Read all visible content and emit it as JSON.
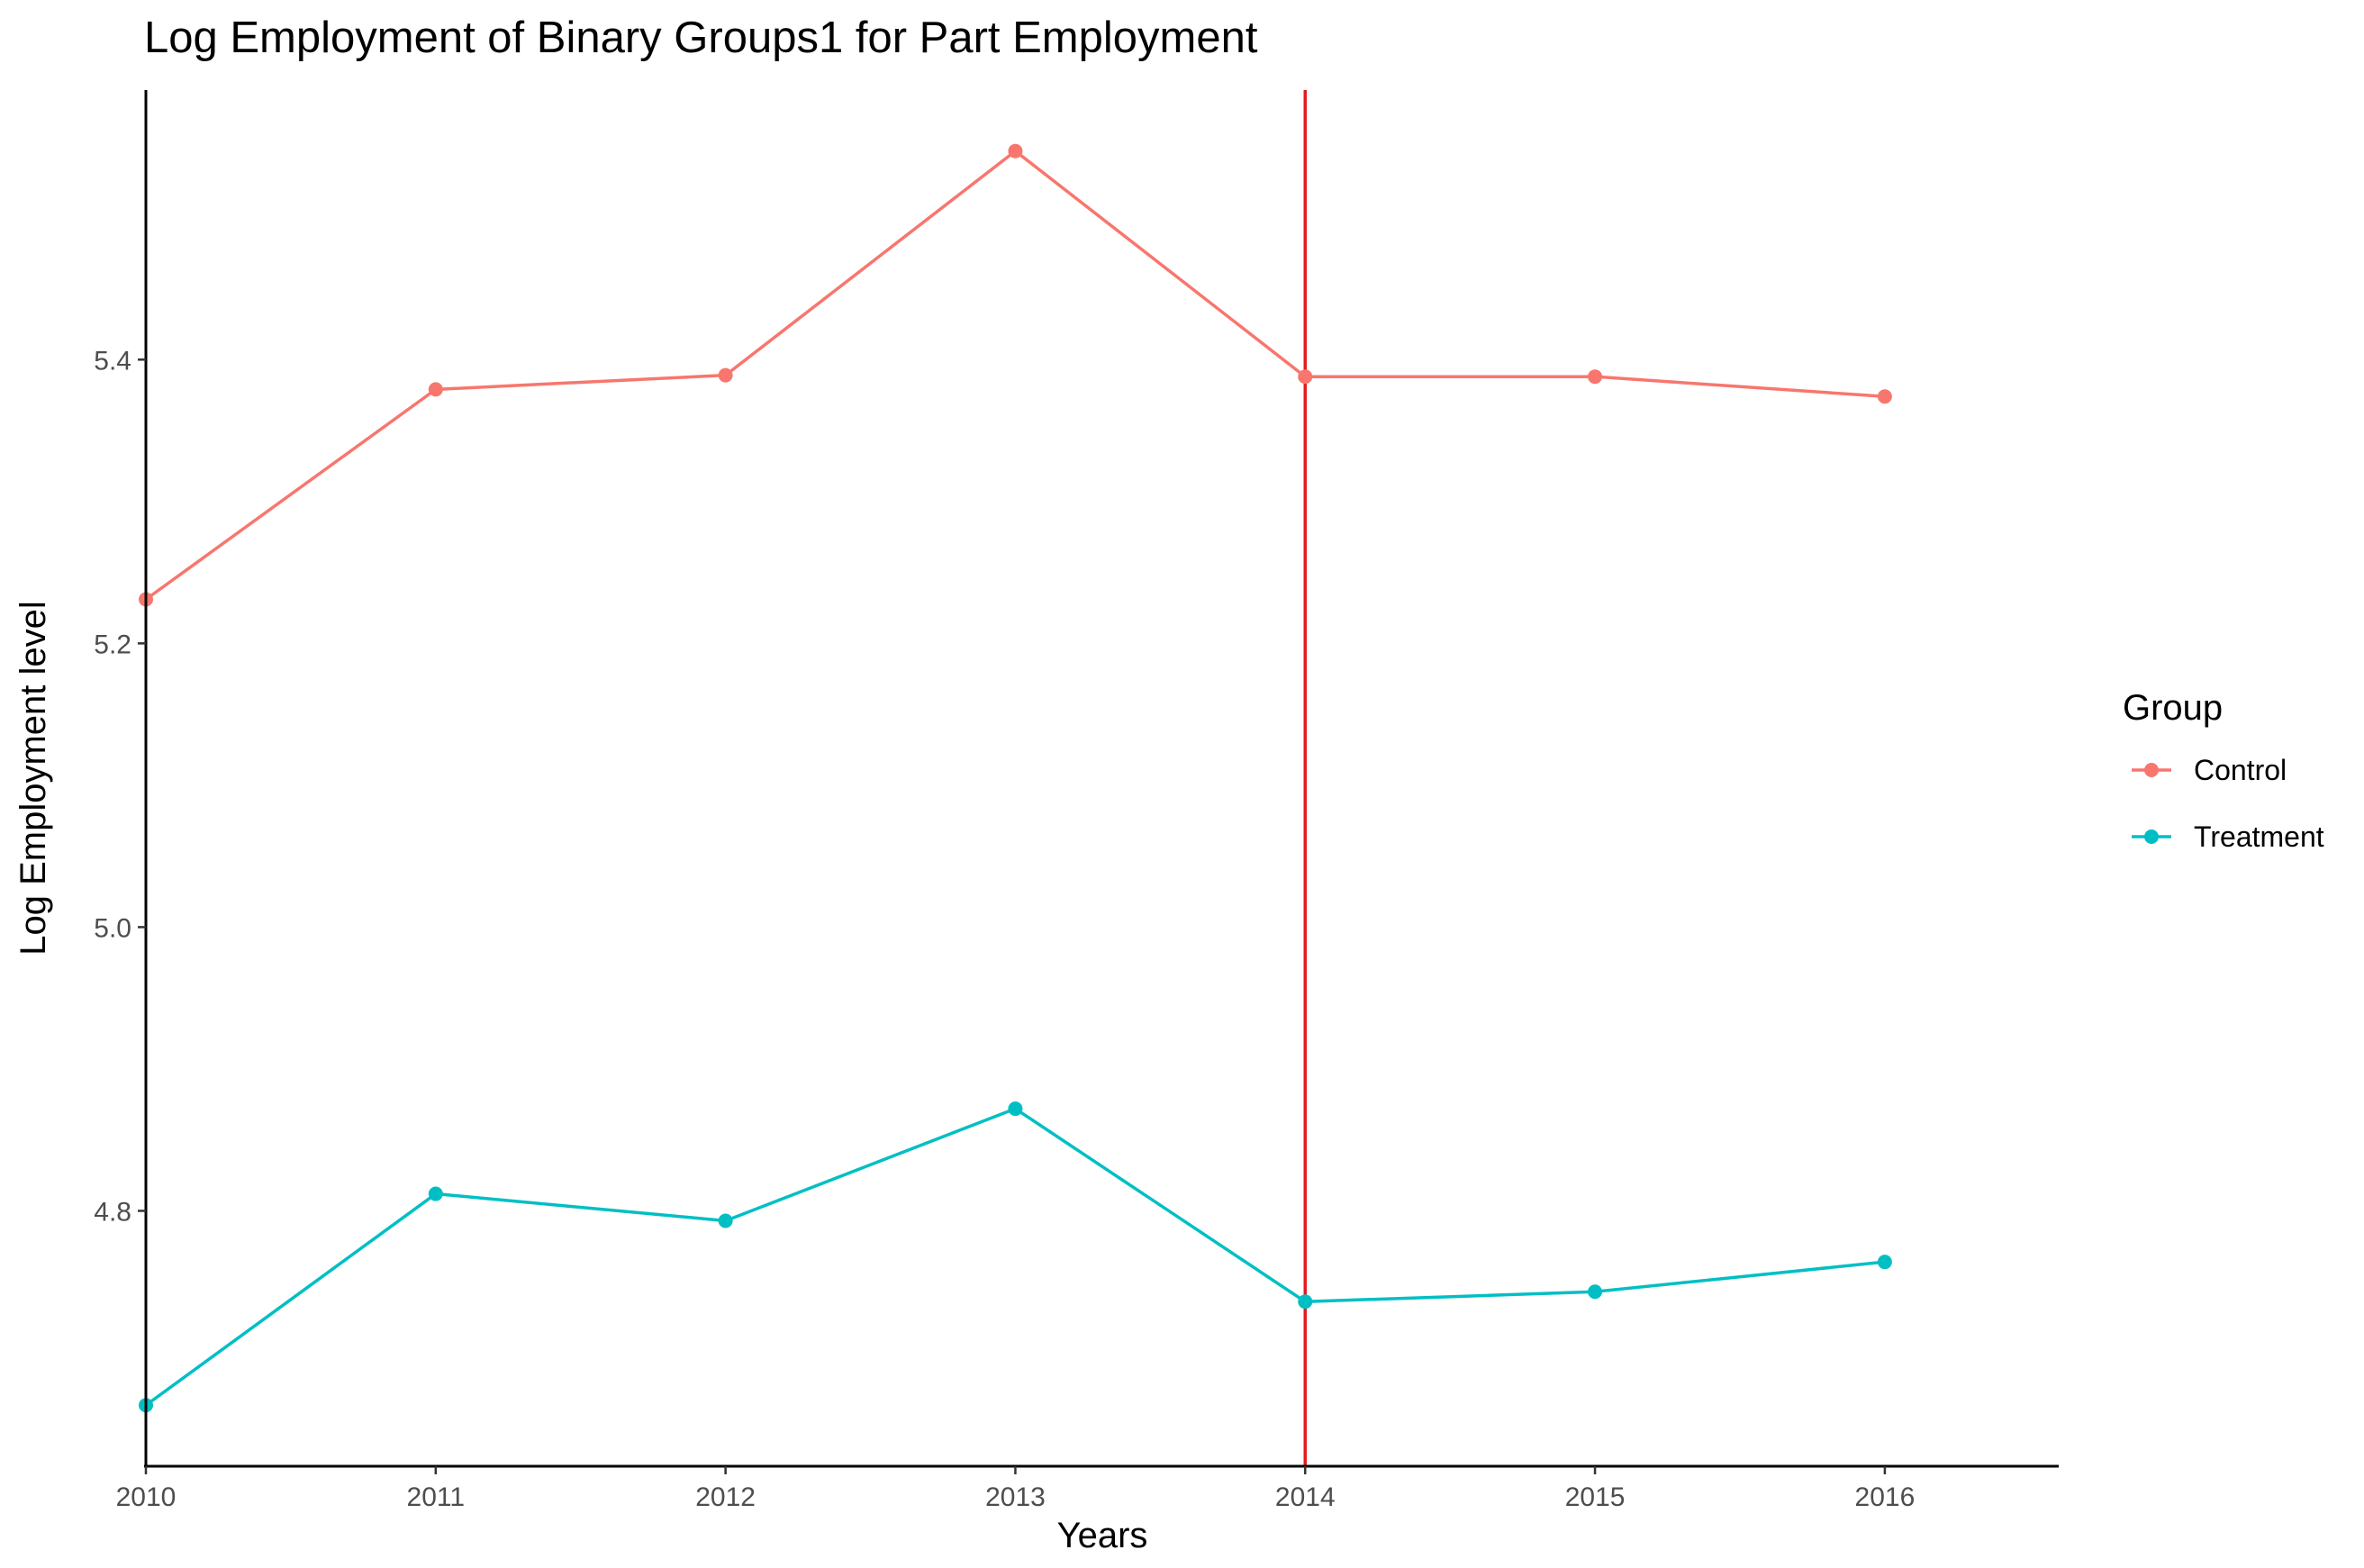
{
  "chart_data": {
    "type": "line",
    "title": "Log Employment of Binary Groups1 for Part Employment",
    "xlabel": "Years",
    "ylabel": "Log Employment level",
    "x": [
      2010,
      2011,
      2012,
      2013,
      2014,
      2015,
      2016
    ],
    "x_tick_labels": [
      "2010",
      "2011",
      "2012",
      "2013",
      "2014",
      "2015",
      "2016"
    ],
    "xlim": [
      2010,
      2016.6
    ],
    "ylim": [
      4.62,
      5.59
    ],
    "y_ticks": [
      4.8,
      5.0,
      5.2,
      5.4
    ],
    "y_tick_labels": [
      "4.8",
      "5.0",
      "5.2",
      "5.4"
    ],
    "grid": false,
    "legend_title": "Group",
    "legend_position": "right",
    "series": [
      {
        "name": "Control",
        "color": "#F8766D",
        "values": [
          5.231,
          5.379,
          5.389,
          5.547,
          5.388,
          5.388,
          5.374
        ]
      },
      {
        "name": "Treatment",
        "color": "#00BFC4",
        "values": [
          4.663,
          4.812,
          4.793,
          4.872,
          4.736,
          4.743,
          4.764
        ]
      }
    ],
    "vline": {
      "x": 2014,
      "color": "#E41A1C"
    }
  }
}
